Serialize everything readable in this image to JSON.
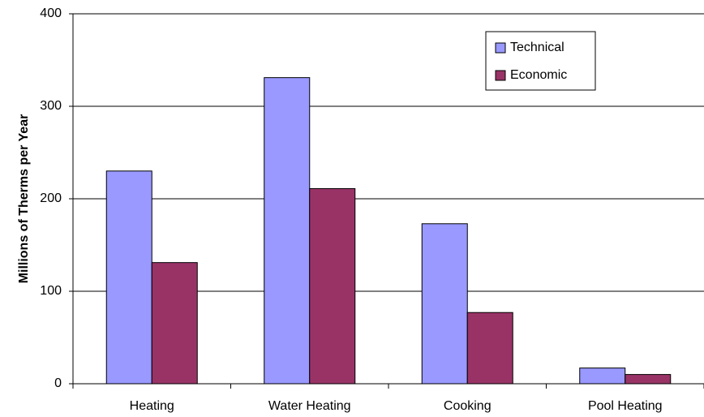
{
  "chart_data": {
    "type": "bar",
    "ylabel": "Millions of Therms per Year",
    "categories": [
      "Heating",
      "Water Heating",
      "Cooking",
      "Pool Heating"
    ],
    "series": [
      {
        "name": "Technical",
        "color": "#9999ff",
        "values": [
          230,
          331,
          173,
          17
        ]
      },
      {
        "name": "Economic",
        "color": "#993366",
        "values": [
          131,
          211,
          77,
          10
        ]
      }
    ],
    "ylim": [
      0,
      400
    ],
    "yticks": [
      0,
      100,
      200,
      300,
      400
    ],
    "grid": true,
    "legend": "top-right"
  }
}
